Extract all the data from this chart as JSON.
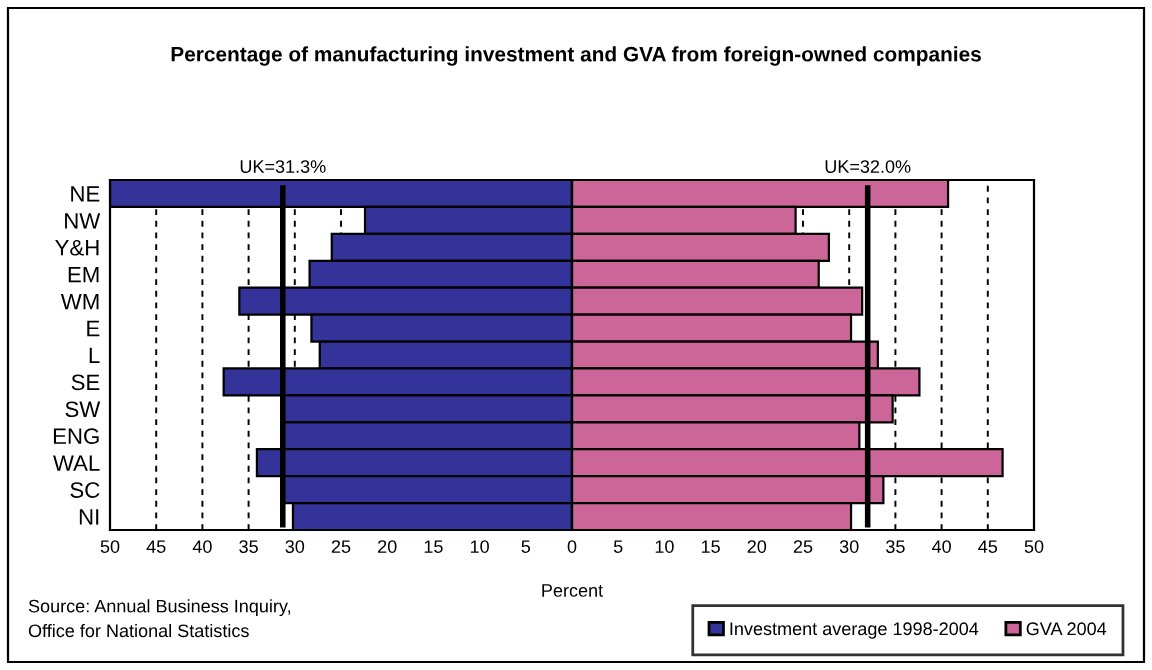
{
  "chart_data": [
    {
      "type": "bar",
      "orientation": "horizontal",
      "title": "Percentage of manufacturing investment and GVA from foreign-owned companies",
      "xlabel": "Percent",
      "categories": [
        "NE",
        "NW",
        "Y&H",
        "EM",
        "WM",
        "E",
        "L",
        "SE",
        "SW",
        "ENG",
        "WAL",
        "SC",
        "NI"
      ],
      "series": [
        {
          "name": "Investment average 1998-2004",
          "color": "#333399",
          "values": [
            50,
            22.4,
            26.0,
            28.4,
            36.0,
            28.2,
            27.3,
            37.7,
            31.2,
            31.2,
            34.1,
            31.2,
            30.2
          ]
        }
      ],
      "xlim": [
        50,
        0
      ],
      "xticks": [
        50,
        45,
        40,
        35,
        30,
        25,
        20,
        15,
        10,
        5
      ],
      "grid": "x",
      "ref_lines": [
        {
          "axis": "x",
          "value": 31.3,
          "label": "UK=31.3%"
        }
      ],
      "annotations": [
        "Source: Annual Business Inquiry,\nOffice for National Statistics"
      ]
    },
    {
      "type": "bar",
      "orientation": "horizontal",
      "categories": [
        null,
        null,
        null,
        null,
        null,
        null,
        null,
        null,
        null,
        null,
        null,
        null,
        null
      ],
      "series": [
        {
          "name": "GVA 2004",
          "color": "#cc6699",
          "values": [
            40.7,
            24.2,
            27.8,
            26.7,
            31.4,
            30.2,
            33.1,
            37.6,
            34.7,
            31.1,
            46.6,
            33.7,
            30.2
          ]
        }
      ],
      "xlim": [
        0,
        50
      ],
      "xticks": [
        0,
        5,
        10,
        15,
        20,
        25,
        30,
        35,
        40,
        45,
        50
      ],
      "grid": "x",
      "tick_labels": "x",
      "legend": "bottom right",
      "ref_lines": [
        {
          "axis": "x",
          "value": 32.0,
          "label": "UK=32.0%"
        }
      ]
    }
  ]
}
